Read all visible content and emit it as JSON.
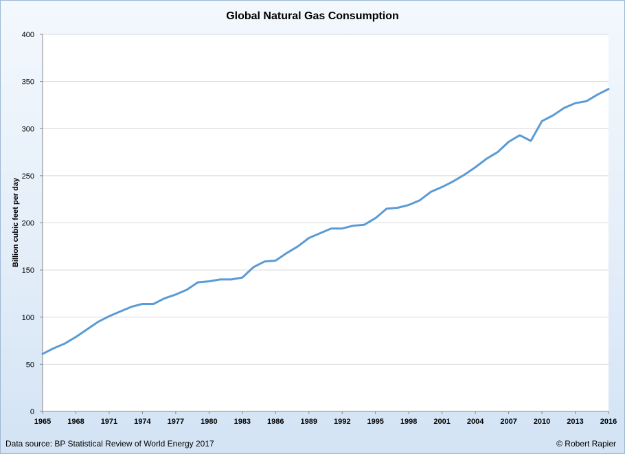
{
  "chart_data": {
    "type": "line",
    "title": "Global Natural Gas Consumption",
    "xlabel": "",
    "ylabel": "Billion cubic feet per day",
    "ylim": [
      0,
      400
    ],
    "yticks": [
      0,
      50,
      100,
      150,
      200,
      250,
      300,
      350,
      400
    ],
    "xlim": [
      1965,
      2016
    ],
    "xticks": [
      1965,
      1968,
      1971,
      1974,
      1977,
      1980,
      1983,
      1986,
      1989,
      1992,
      1995,
      1998,
      2001,
      2004,
      2007,
      2010,
      2013,
      2016
    ],
    "grid": "horizontal",
    "legend": "none",
    "series": [
      {
        "color": "#5b9bd5",
        "x": [
          1965,
          1966,
          1967,
          1968,
          1969,
          1970,
          1971,
          1972,
          1973,
          1974,
          1975,
          1976,
          1977,
          1978,
          1979,
          1980,
          1981,
          1982,
          1983,
          1984,
          1985,
          1986,
          1987,
          1988,
          1989,
          1990,
          1991,
          1992,
          1993,
          1994,
          1995,
          1996,
          1997,
          1998,
          1999,
          2000,
          2001,
          2002,
          2003,
          2004,
          2005,
          2006,
          2007,
          2008,
          2009,
          2010,
          2011,
          2012,
          2013,
          2014,
          2015,
          2016
        ],
        "y": [
          61,
          67,
          72,
          79,
          87,
          95,
          101,
          106,
          111,
          114,
          114,
          120,
          124,
          129,
          137,
          138,
          140,
          140,
          142,
          153,
          159,
          160,
          168,
          175,
          184,
          189,
          194,
          194,
          197,
          198,
          205,
          215,
          216,
          219,
          224,
          233,
          238,
          244,
          251,
          259,
          268,
          275,
          286,
          293,
          287,
          308,
          314,
          322,
          327,
          329,
          336,
          342
        ]
      }
    ]
  },
  "footer": {
    "source": "Data source: BP Statistical Review of World Energy 2017",
    "credit": "© Robert Rapier"
  }
}
